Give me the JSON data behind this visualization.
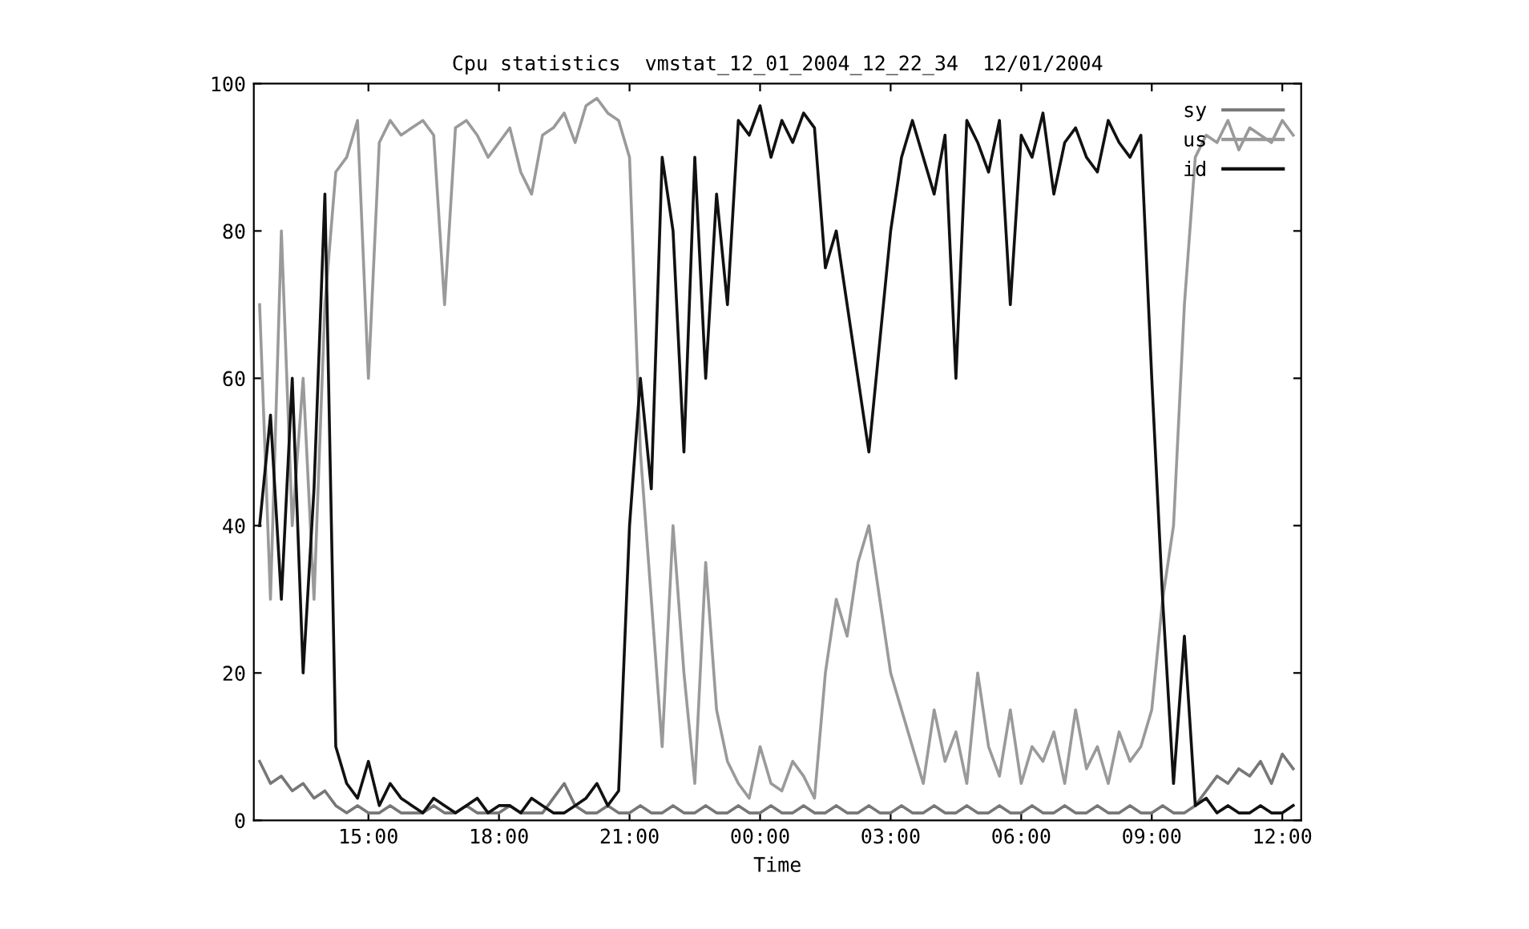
{
  "chart_data": {
    "type": "line",
    "title": "Cpu statistics  vmstat_12_01_2004_12_22_34  12/01/2004",
    "xlabel": "Time",
    "x": [
      "2004-12-01T12:30",
      "2004-12-01T12:45",
      "2004-12-01T13:00",
      "2004-12-01T13:15",
      "2004-12-01T13:30",
      "2004-12-01T13:45",
      "2004-12-01T14:00",
      "2004-12-01T14:15",
      "2004-12-01T14:30",
      "2004-12-01T14:45",
      "2004-12-01T15:00",
      "2004-12-01T15:15",
      "2004-12-01T15:30",
      "2004-12-01T15:45",
      "2004-12-01T16:00",
      "2004-12-01T16:15",
      "2004-12-01T16:30",
      "2004-12-01T16:45",
      "2004-12-01T17:00",
      "2004-12-01T17:15",
      "2004-12-01T17:30",
      "2004-12-01T17:45",
      "2004-12-01T18:00",
      "2004-12-01T18:15",
      "2004-12-01T18:30",
      "2004-12-01T18:45",
      "2004-12-01T19:00",
      "2004-12-01T19:15",
      "2004-12-01T19:30",
      "2004-12-01T19:45",
      "2004-12-01T20:00",
      "2004-12-01T20:15",
      "2004-12-01T20:30",
      "2004-12-01T20:45",
      "2004-12-01T21:00",
      "2004-12-01T21:15",
      "2004-12-01T21:30",
      "2004-12-01T21:45",
      "2004-12-01T22:00",
      "2004-12-01T22:15",
      "2004-12-01T22:30",
      "2004-12-01T22:45",
      "2004-12-01T23:00",
      "2004-12-01T23:15",
      "2004-12-01T23:30",
      "2004-12-01T23:45",
      "2004-12-02T00:00",
      "2004-12-02T00:15",
      "2004-12-02T00:30",
      "2004-12-02T00:45",
      "2004-12-02T01:00",
      "2004-12-02T01:15",
      "2004-12-02T01:30",
      "2004-12-02T01:45",
      "2004-12-02T02:00",
      "2004-12-02T02:15",
      "2004-12-02T02:30",
      "2004-12-02T02:45",
      "2004-12-02T03:00",
      "2004-12-02T03:15",
      "2004-12-02T03:30",
      "2004-12-02T03:45",
      "2004-12-02T04:00",
      "2004-12-02T04:15",
      "2004-12-02T04:30",
      "2004-12-02T04:45",
      "2004-12-02T05:00",
      "2004-12-02T05:15",
      "2004-12-02T05:30",
      "2004-12-02T05:45",
      "2004-12-02T06:00",
      "2004-12-02T06:15",
      "2004-12-02T06:30",
      "2004-12-02T06:45",
      "2004-12-02T07:00",
      "2004-12-02T07:15",
      "2004-12-02T07:30",
      "2004-12-02T07:45",
      "2004-12-02T08:00",
      "2004-12-02T08:15",
      "2004-12-02T08:30",
      "2004-12-02T08:45",
      "2004-12-02T09:00",
      "2004-12-02T09:15",
      "2004-12-02T09:30",
      "2004-12-02T09:45",
      "2004-12-02T10:00",
      "2004-12-02T10:15",
      "2004-12-02T10:30",
      "2004-12-02T10:45",
      "2004-12-02T11:00",
      "2004-12-02T11:15",
      "2004-12-02T11:30",
      "2004-12-02T11:45",
      "2004-12-02T12:00",
      "2004-12-02T12:15"
    ],
    "series": [
      {
        "name": "sy",
        "color": "#777777",
        "values": [
          8,
          5,
          6,
          4,
          5,
          3,
          4,
          2,
          1,
          2,
          1,
          1,
          2,
          1,
          1,
          1,
          2,
          1,
          1,
          2,
          1,
          1,
          1,
          2,
          1,
          1,
          1,
          3,
          5,
          2,
          1,
          1,
          2,
          1,
          1,
          2,
          1,
          1,
          2,
          1,
          1,
          2,
          1,
          1,
          2,
          1,
          1,
          2,
          1,
          1,
          2,
          1,
          1,
          2,
          1,
          1,
          2,
          1,
          1,
          2,
          1,
          1,
          2,
          1,
          1,
          2,
          1,
          1,
          2,
          1,
          1,
          2,
          1,
          1,
          2,
          1,
          1,
          2,
          1,
          1,
          2,
          1,
          1,
          2,
          1,
          1,
          2,
          4,
          6,
          5,
          7,
          6,
          8,
          5,
          9,
          7
        ]
      },
      {
        "name": "us",
        "color": "#9a9a9a",
        "values": [
          70,
          30,
          80,
          40,
          60,
          30,
          70,
          88,
          90,
          95,
          60,
          92,
          95,
          93,
          94,
          95,
          93,
          70,
          94,
          95,
          93,
          90,
          92,
          94,
          88,
          85,
          93,
          94,
          96,
          92,
          97,
          98,
          96,
          95,
          90,
          50,
          30,
          10,
          40,
          20,
          5,
          35,
          15,
          8,
          5,
          3,
          10,
          5,
          4,
          8,
          6,
          3,
          20,
          30,
          25,
          35,
          40,
          30,
          20,
          15,
          10,
          5,
          15,
          8,
          12,
          5,
          20,
          10,
          6,
          15,
          5,
          10,
          8,
          12,
          5,
          15,
          7,
          10,
          5,
          12,
          8,
          10,
          15,
          30,
          40,
          70,
          90,
          93,
          92,
          95,
          91,
          94,
          93,
          92,
          95,
          93
        ]
      },
      {
        "name": "id",
        "color": "#111111",
        "values": [
          40,
          55,
          30,
          60,
          20,
          45,
          85,
          10,
          5,
          3,
          8,
          2,
          5,
          3,
          2,
          1,
          3,
          2,
          1,
          2,
          3,
          1,
          2,
          2,
          1,
          3,
          2,
          1,
          1,
          2,
          3,
          5,
          2,
          4,
          40,
          60,
          45,
          90,
          80,
          50,
          90,
          60,
          85,
          70,
          95,
          93,
          97,
          90,
          95,
          92,
          96,
          94,
          75,
          80,
          70,
          60,
          50,
          65,
          80,
          90,
          95,
          90,
          85,
          93,
          60,
          95,
          92,
          88,
          95,
          70,
          93,
          90,
          96,
          85,
          92,
          94,
          90,
          88,
          95,
          92,
          90,
          93,
          60,
          30,
          5,
          25,
          2,
          3,
          1,
          2,
          1,
          1,
          2,
          1,
          1,
          2
        ]
      }
    ],
    "xlim": [
      "2004-12-01T12:22",
      "2004-12-02T12:26"
    ],
    "xticks": [
      {
        "value": "2004-12-01T15:00",
        "label": "15:00"
      },
      {
        "value": "2004-12-01T18:00",
        "label": "18:00"
      },
      {
        "value": "2004-12-01T21:00",
        "label": "21:00"
      },
      {
        "value": "2004-12-02T00:00",
        "label": "00:00"
      },
      {
        "value": "2004-12-02T03:00",
        "label": "03:00"
      },
      {
        "value": "2004-12-02T06:00",
        "label": "06:00"
      },
      {
        "value": "2004-12-02T09:00",
        "label": "09:00"
      },
      {
        "value": "2004-12-02T12:00",
        "label": "12:00"
      }
    ],
    "ylim": [
      0,
      100
    ],
    "yticks": [
      0,
      20,
      40,
      60,
      80,
      100
    ],
    "grid": false,
    "legend": "top right",
    "marker": "none",
    "line_style": "solid"
  }
}
